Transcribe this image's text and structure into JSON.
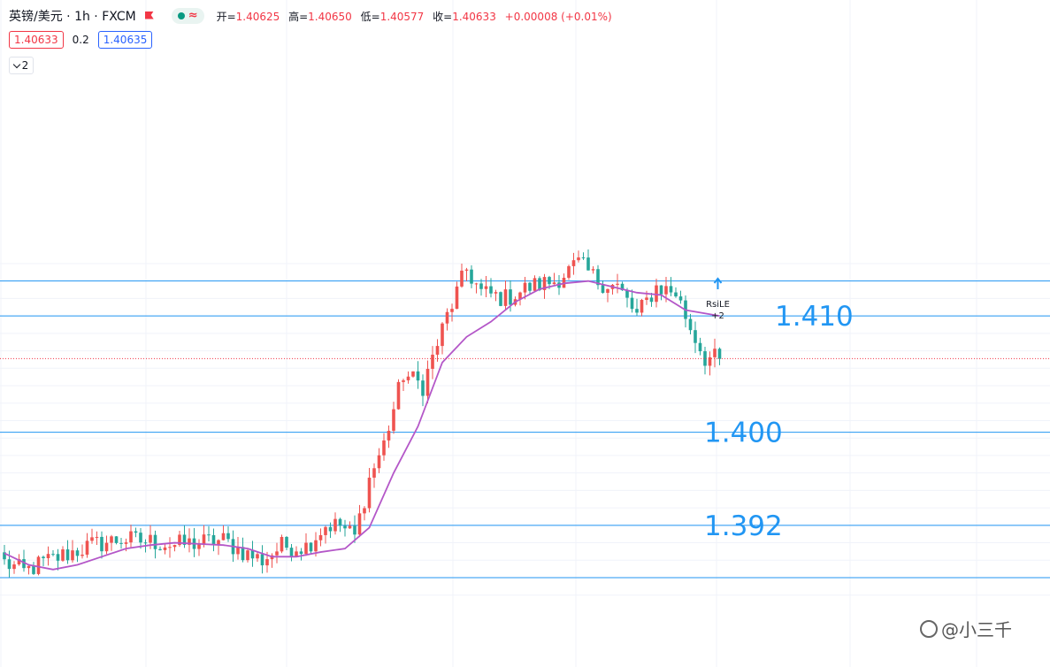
{
  "header": {
    "symbol": "英镑/美元 · 1h · FXCM",
    "open_label": "开=",
    "open": "1.40625",
    "high_label": "高=",
    "high": "1.40650",
    "low_label": "低=",
    "low": "1.40577",
    "close_label": "收=",
    "close": "1.40633",
    "change": "+0.00008 (+0.01%)"
  },
  "quote": {
    "bid": "1.40633",
    "spread": "0.2",
    "ask": "1.40635"
  },
  "indicators_toggle": {
    "count": "2"
  },
  "watermark": {
    "text": "@小三千"
  },
  "colors": {
    "up": "#ef5350",
    "down": "#26a69a",
    "ma": "#b457c8",
    "level": "#2196f3",
    "last_price": "#f23645"
  },
  "chart_data": {
    "type": "candlestick",
    "symbol": "GBPUSD",
    "interval": "1h",
    "ylim": [
      1.3855,
      1.4155
    ],
    "grid": true,
    "level_lines": [
      {
        "price": 1.413
      },
      {
        "price": 1.41,
        "label": "1.410"
      },
      {
        "price": 1.4,
        "label": "1.400"
      },
      {
        "price": 1.392,
        "label": "1.392"
      },
      {
        "price": 1.3875
      }
    ],
    "last_price": 1.40633,
    "signal": {
      "text": "RsiLE",
      "qty": "+2",
      "bar": 147
    },
    "ma_series": {
      "name": "moving average",
      "points": [
        [
          0,
          1.3896
        ],
        [
          5,
          1.3886
        ],
        [
          10,
          1.3882
        ],
        [
          15,
          1.3886
        ],
        [
          20,
          1.3893
        ],
        [
          25,
          1.39
        ],
        [
          30,
          1.3903
        ],
        [
          35,
          1.3905
        ],
        [
          40,
          1.3904
        ],
        [
          45,
          1.3903
        ],
        [
          50,
          1.39
        ],
        [
          55,
          1.3893
        ],
        [
          60,
          1.3893
        ],
        [
          65,
          1.3897
        ],
        [
          70,
          1.39
        ],
        [
          75,
          1.3918
        ],
        [
          80,
          1.3965
        ],
        [
          85,
          1.4005
        ],
        [
          90,
          1.406
        ],
        [
          95,
          1.4082
        ],
        [
          100,
          1.4095
        ],
        [
          105,
          1.4112
        ],
        [
          110,
          1.4123
        ],
        [
          115,
          1.4128
        ],
        [
          120,
          1.413
        ],
        [
          125,
          1.4125
        ],
        [
          130,
          1.412
        ],
        [
          135,
          1.4118
        ],
        [
          140,
          1.4105
        ],
        [
          147,
          1.41
        ]
      ]
    },
    "anchors": [
      [
        0,
        1.3888
      ],
      [
        4,
        1.388
      ],
      [
        8,
        1.3888
      ],
      [
        14,
        1.3897
      ],
      [
        18,
        1.3903
      ],
      [
        24,
        1.3908
      ],
      [
        30,
        1.3906
      ],
      [
        35,
        1.3903
      ],
      [
        40,
        1.3905
      ],
      [
        45,
        1.3907
      ],
      [
        50,
        1.3895
      ],
      [
        53,
        1.389
      ],
      [
        57,
        1.3902
      ],
      [
        62,
        1.3902
      ],
      [
        66,
        1.392
      ],
      [
        69,
        1.392
      ],
      [
        72,
        1.391
      ],
      [
        75,
        1.396
      ],
      [
        78,
        1.399
      ],
      [
        82,
        1.405
      ],
      [
        86,
        1.404
      ],
      [
        91,
        1.41
      ],
      [
        95,
        1.414
      ],
      [
        98,
        1.412
      ],
      [
        103,
        1.4115
      ],
      [
        108,
        1.4125
      ],
      [
        113,
        1.413
      ],
      [
        118,
        1.4145
      ],
      [
        122,
        1.413
      ],
      [
        126,
        1.4125
      ],
      [
        130,
        1.41
      ],
      [
        134,
        1.4125
      ],
      [
        138,
        1.412
      ],
      [
        141,
        1.409
      ],
      [
        144,
        1.4064
      ],
      [
        147,
        1.4063
      ]
    ]
  }
}
